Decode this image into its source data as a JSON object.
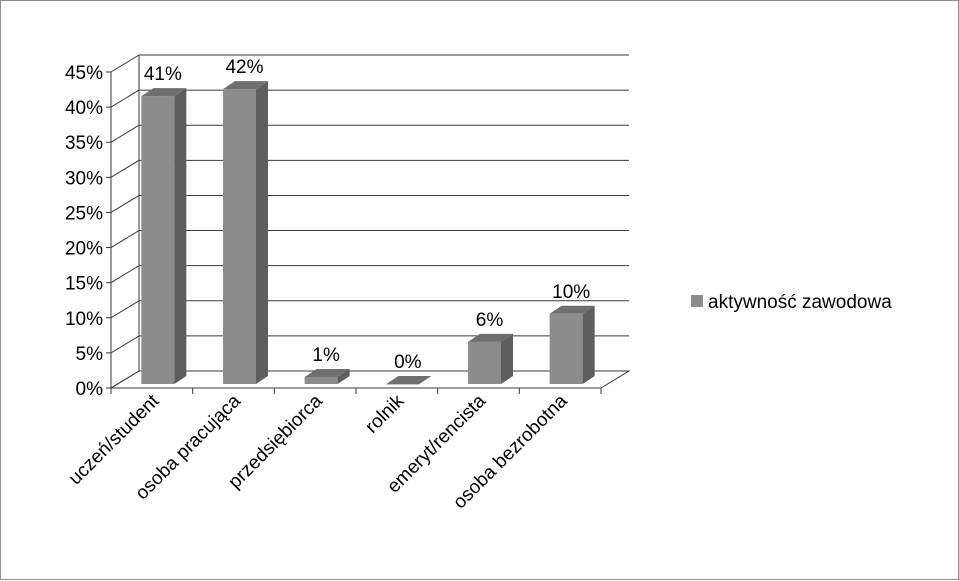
{
  "chart_data": {
    "type": "bar",
    "style": "3d-clustered-column",
    "categories": [
      "uczeń/student",
      "osoba pracująca",
      "przedsiębiorca",
      "rolnik",
      "emeryt/rencista",
      "osoba bezrobotna"
    ],
    "series": [
      {
        "name": "aktywność zawodowa",
        "values": [
          41,
          42,
          1,
          0,
          6,
          10
        ],
        "data_labels": [
          "41%",
          "42%",
          "1%",
          "0%",
          "6%",
          "10%"
        ]
      }
    ],
    "yticks": [
      "0%",
      "5%",
      "10%",
      "15%",
      "20%",
      "25%",
      "30%",
      "35%",
      "40%",
      "45%"
    ],
    "ylim": [
      0,
      45
    ],
    "grid": true,
    "legend_position": "right",
    "colors": {
      "bar_front": "#8c8c8c",
      "bar_side": "#5e5e5e",
      "bar_top": "#6f6f6f",
      "grid": "#3a3a3a",
      "legend_swatch": "#8c8c8c"
    }
  }
}
